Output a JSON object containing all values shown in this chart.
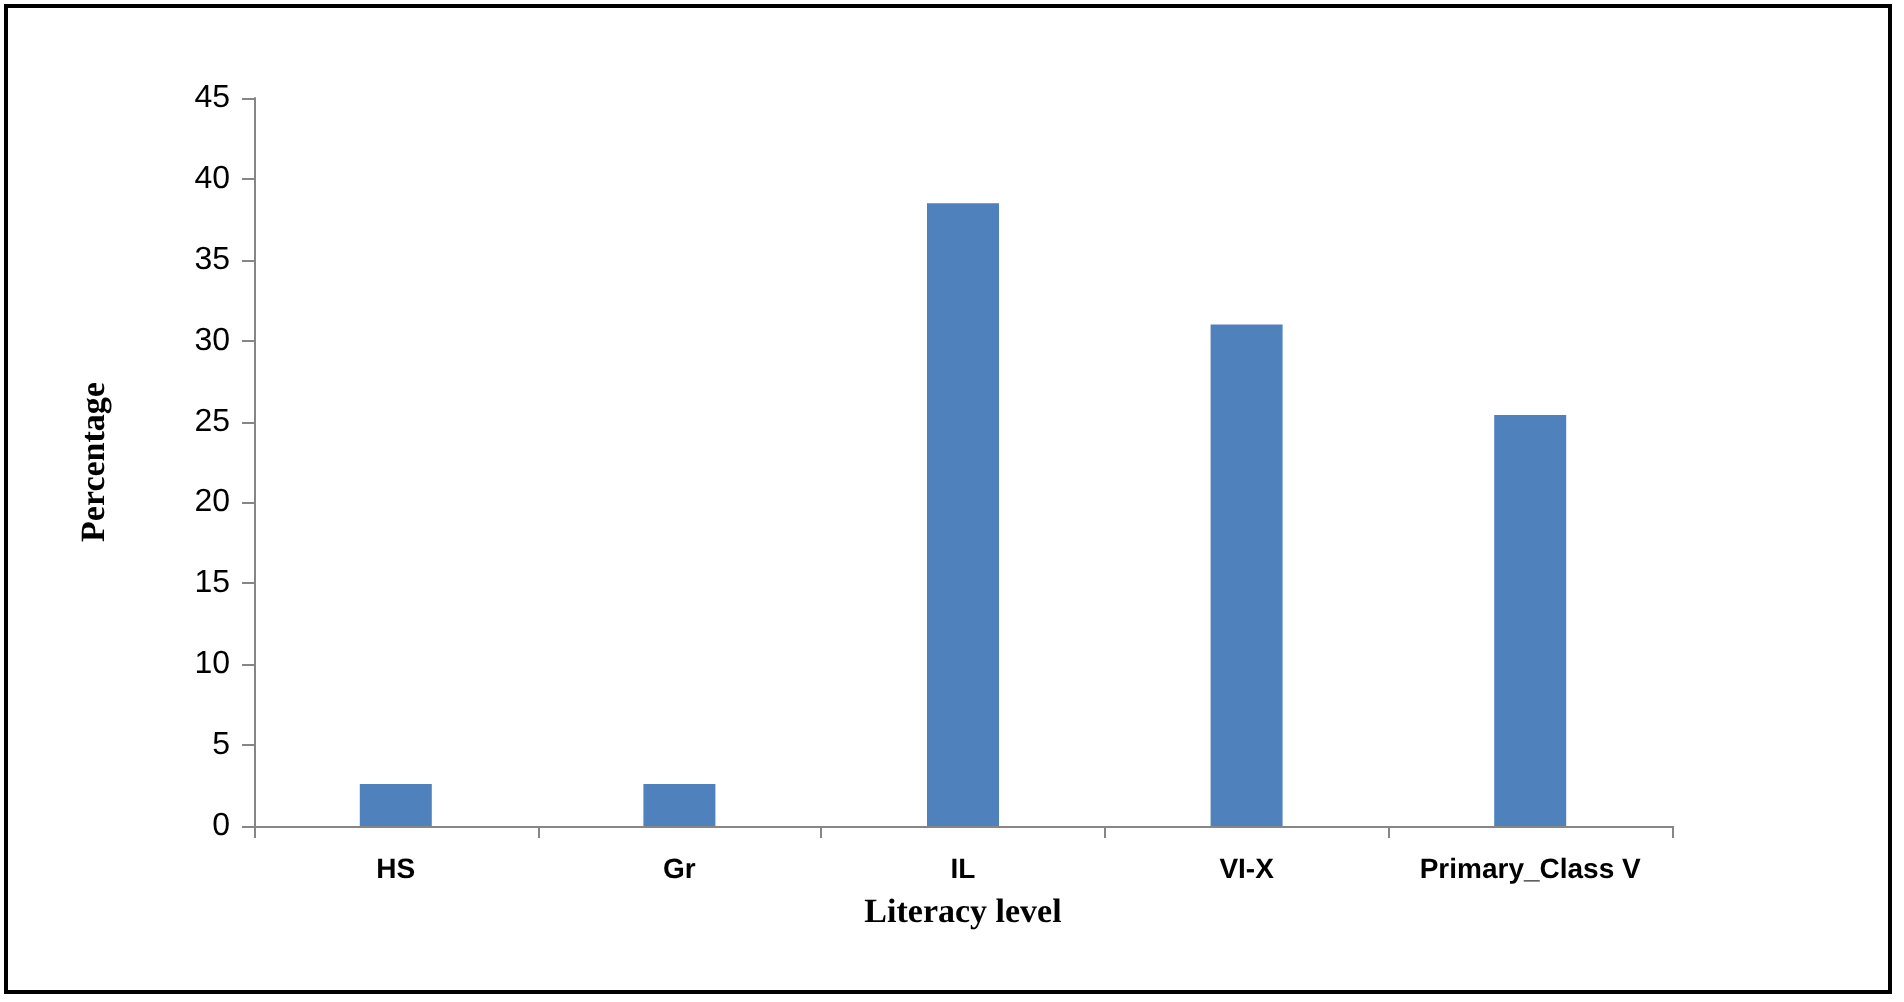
{
  "chart_data": {
    "type": "bar",
    "xlabel": "Literacy level",
    "ylabel": "Percentage",
    "categories": [
      "HS",
      "Gr",
      "IL",
      "VI-X",
      "Primary_Class V"
    ],
    "values": [
      2.6,
      2.6,
      38.5,
      31.0,
      25.4
    ],
    "color": "#4f81bd",
    "ylim": [
      0,
      45
    ],
    "yticks": [
      0,
      5,
      10,
      15,
      20,
      25,
      30,
      35,
      40,
      45
    ],
    "grid": false
  }
}
